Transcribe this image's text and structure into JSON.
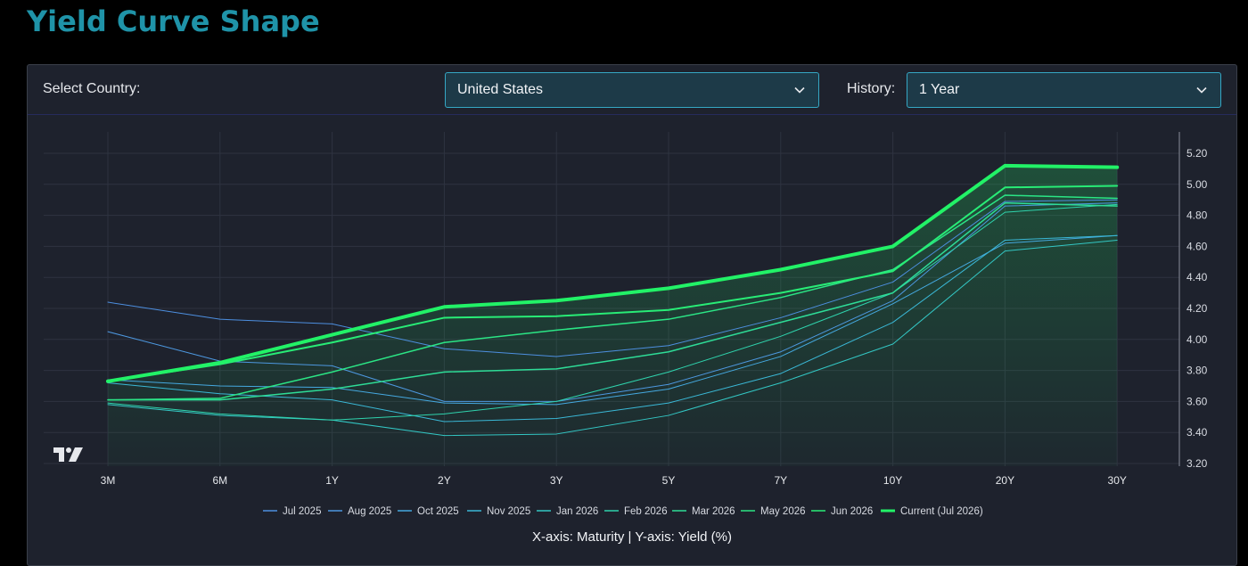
{
  "page": {
    "title": "Yield Curve Shape"
  },
  "controls": {
    "country_label": "Select Country:",
    "country_value": "United States",
    "history_label": "History:",
    "history_value": "1 Year"
  },
  "colors": {
    "title": "#1f93a8",
    "panel_bg": "#1e222d",
    "select_bg": "#1d3a48",
    "select_border": "#35a7c4",
    "current_series": "#22f267"
  },
  "axis_note": "X-axis: Maturity | Y-axis: Yield (%)",
  "chart_data": {
    "type": "line",
    "categories": [
      "3M",
      "6M",
      "1Y",
      "2Y",
      "3Y",
      "5Y",
      "7Y",
      "10Y",
      "20Y",
      "30Y"
    ],
    "y_ticks": [
      "3.20",
      "3.40",
      "3.60",
      "3.80",
      "4.00",
      "4.20",
      "4.40",
      "4.60",
      "4.80",
      "5.00",
      "5.20"
    ],
    "ylim": [
      3.2,
      5.2
    ],
    "y_axis_side": "right",
    "grid": true,
    "legend_position": "bottom",
    "series": [
      {
        "name": "Jul 2025",
        "color": "#4d8fe0",
        "width": 1,
        "values": [
          4.24,
          4.13,
          4.1,
          3.94,
          3.89,
          3.96,
          4.14,
          4.37,
          4.89,
          4.9
        ]
      },
      {
        "name": "Aug 2025",
        "color": "#4d98e0",
        "width": 1,
        "values": [
          4.05,
          3.86,
          3.83,
          3.6,
          3.6,
          3.71,
          3.92,
          4.25,
          4.86,
          4.88
        ]
      },
      {
        "name": "Oct 2025",
        "color": "#45a9e0",
        "width": 1,
        "values": [
          3.74,
          3.7,
          3.69,
          3.59,
          3.58,
          3.68,
          3.89,
          4.23,
          4.62,
          4.67
        ]
      },
      {
        "name": "Nov 2025",
        "color": "#3ab8d6",
        "width": 1,
        "values": [
          3.72,
          3.65,
          3.61,
          3.47,
          3.49,
          3.59,
          3.78,
          4.11,
          4.64,
          4.67
        ]
      },
      {
        "name": "Jan 2026",
        "color": "#33c7c4",
        "width": 1,
        "values": [
          3.58,
          3.51,
          3.48,
          3.38,
          3.39,
          3.51,
          3.72,
          3.97,
          4.57,
          4.64
        ]
      },
      {
        "name": "Feb 2026",
        "color": "#2fd3ad",
        "width": 1,
        "values": [
          3.59,
          3.52,
          3.48,
          3.52,
          3.6,
          3.79,
          4.02,
          4.3,
          4.82,
          4.87
        ]
      },
      {
        "name": "Mar 2026",
        "color": "#2edc97",
        "width": 1.5,
        "values": [
          3.61,
          3.61,
          3.68,
          3.79,
          3.81,
          3.92,
          4.11,
          4.3,
          4.88,
          4.86
        ]
      },
      {
        "name": "May 2026",
        "color": "#2be585",
        "width": 1.5,
        "values": [
          3.61,
          3.62,
          3.79,
          3.98,
          4.06,
          4.13,
          4.27,
          4.45,
          4.93,
          4.91
        ]
      },
      {
        "name": "Jun 2026",
        "color": "#28ec76",
        "width": 2,
        "values": [
          3.73,
          3.84,
          3.98,
          4.14,
          4.15,
          4.19,
          4.3,
          4.44,
          4.98,
          4.99
        ]
      },
      {
        "name": "Current (Jul 2026)",
        "color": "#22f267",
        "width": 4,
        "values": [
          3.73,
          3.85,
          4.03,
          4.21,
          4.25,
          4.33,
          4.45,
          4.6,
          5.12,
          5.11
        ]
      }
    ]
  }
}
